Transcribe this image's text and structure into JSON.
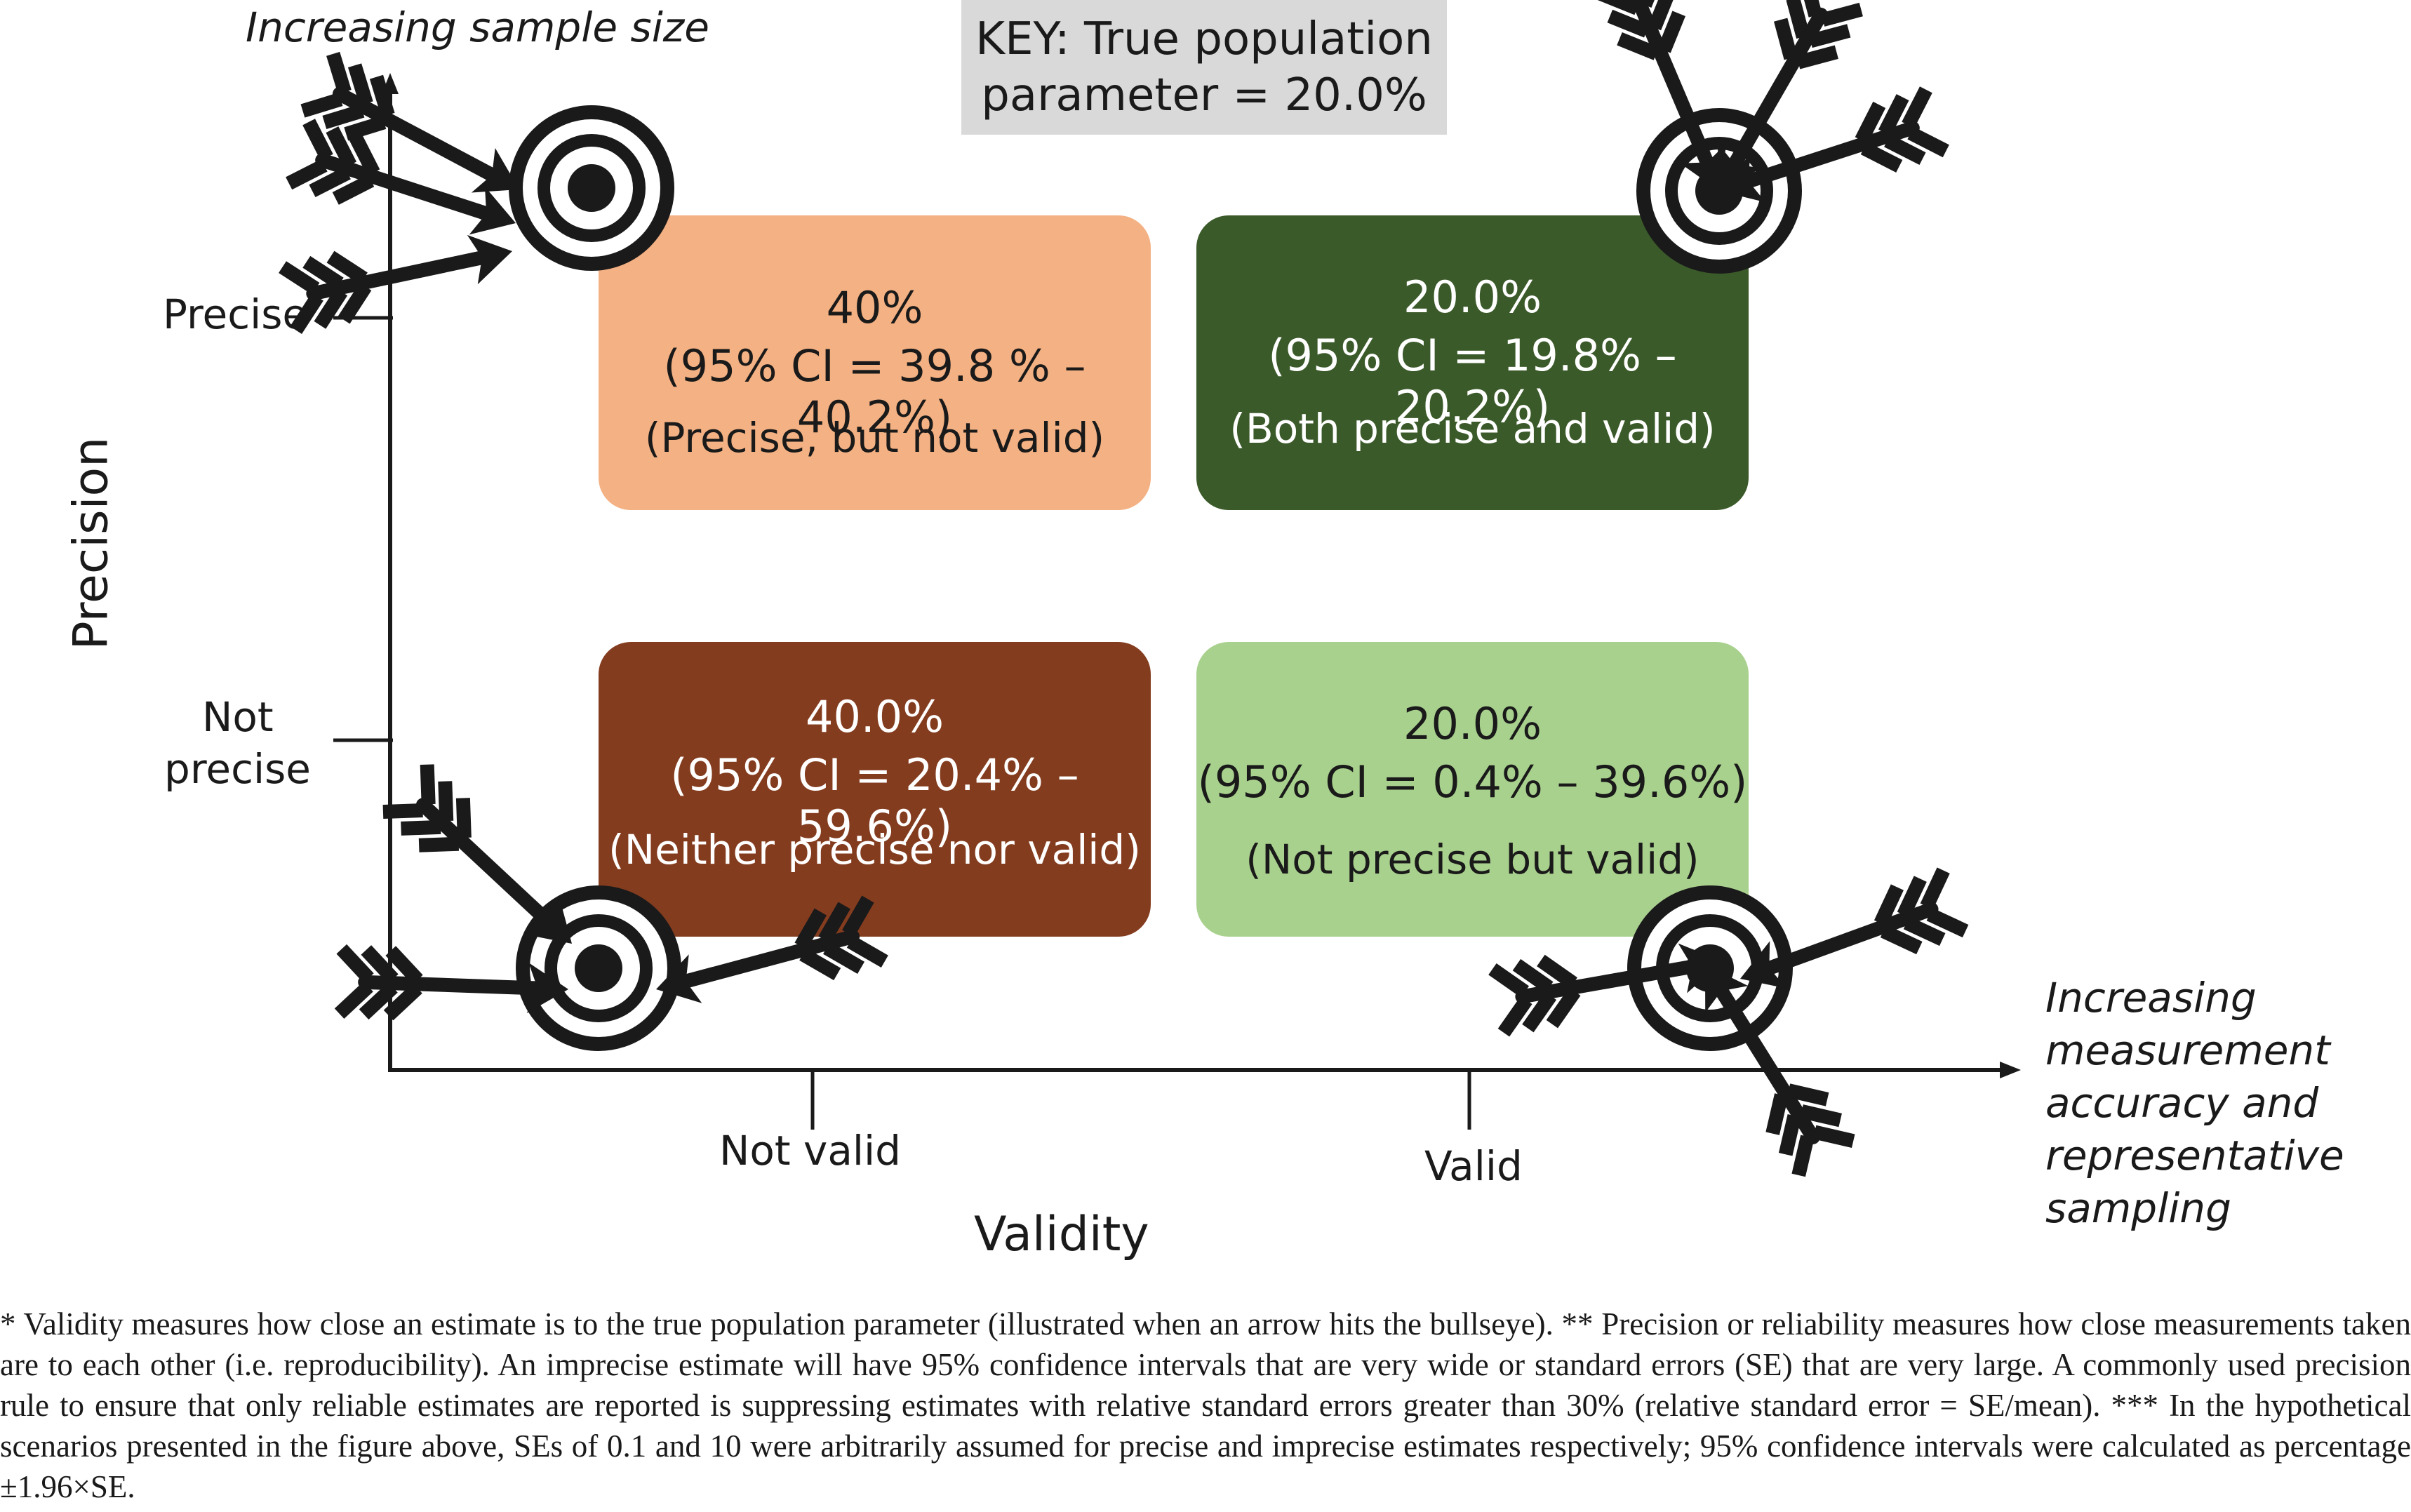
{
  "key": {
    "line1": "KEY: True population",
    "line2": "parameter = 20.0%"
  },
  "axes": {
    "y_arrow_label": "Increasing sample size",
    "y_title": "Precision",
    "y_tick_precise": "Precise",
    "y_tick_not_precise_1": "Not",
    "y_tick_not_precise_2": "precise",
    "x_tick_not_valid": "Not valid",
    "x_tick_valid": "Valid",
    "x_title": "Validity",
    "x_arrow_label": [
      "Increasing",
      "measurement",
      "accuracy and",
      "representative",
      "sampling"
    ]
  },
  "quadrants": {
    "top_left": {
      "pct": "40%",
      "ci": "(95% CI = 39.8 % – 40.2%)",
      "note": "(Precise, but not valid)",
      "color": "#f4b183",
      "text_color": "#1a1a1a"
    },
    "top_right": {
      "pct": "20.0%",
      "ci": "(95% CI = 19.8% – 20.2%)",
      "note": "(Both precise and valid)",
      "color": "#3b5a2a",
      "text_color": "#ffffff"
    },
    "bottom_left": {
      "pct": "40.0%",
      "ci": "(95% CI = 20.4% – 59.6%)",
      "note": "(Neither  precise nor valid)",
      "color": "#843c1f",
      "text_color": "#ffffff"
    },
    "bottom_right": {
      "pct": "20.0%",
      "ci": "(95% CI = 0.4% – 39.6%)",
      "note": "(Not precise but valid)",
      "color": "#a9d18e",
      "text_color": "#1a1a1a"
    }
  },
  "icons": [
    "target-arrows-icon",
    "arrow-icon"
  ],
  "footnote": "* Validity measures how close an estimate is to the true population parameter (illustrated when an arrow hits the bullseye). ** Precision or reliability measures how close measurements taken are to each other (i.e. reproducibility). An imprecise estimate will have 95% confidence intervals that are very wide or standard errors (SE) that are very large.  A commonly used precision rule to ensure that only reliable estimates are reported is suppressing estimates with relative standard errors greater than 30% (relative standard error = SE/mean). *** In the hypothetical scenarios presented in the figure above, SEs of 0.1 and 10 were arbitrarily assumed for precise and imprecise estimates respectively; 95% confidence intervals were calculated as percentage ±1.96×SE."
}
